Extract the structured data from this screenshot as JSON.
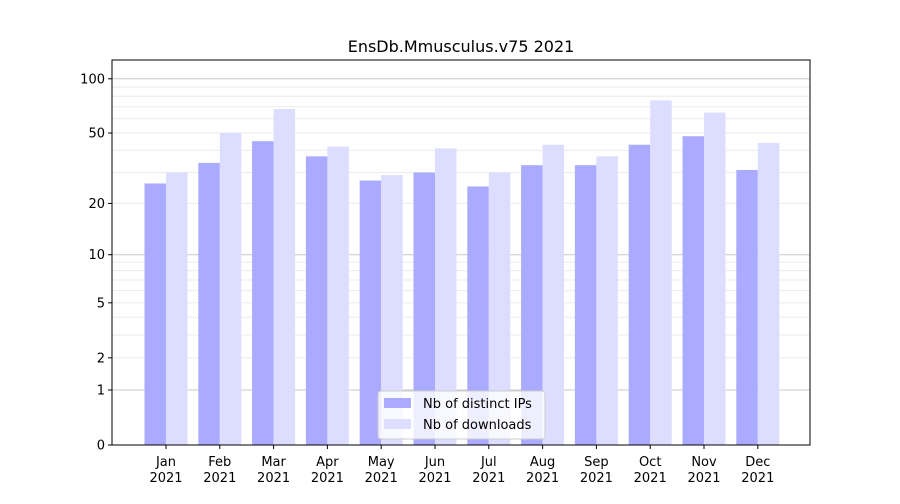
{
  "chart_data": {
    "type": "bar",
    "title": "EnsDb.Mmusculus.v75 2021",
    "xlabel": "",
    "ylabel": "",
    "y_scale": "log10(1+y)",
    "ylim": [
      0,
      127
    ],
    "yticks": [
      0,
      1,
      2,
      5,
      10,
      20,
      50,
      100
    ],
    "grid": true,
    "legend_position": "bottom-center",
    "categories": [
      "Jan\n2021",
      "Feb\n2021",
      "Mar\n2021",
      "Apr\n2021",
      "May\n2021",
      "Jun\n2021",
      "Jul\n2021",
      "Aug\n2021",
      "Sep\n2021",
      "Oct\n2021",
      "Nov\n2021",
      "Dec\n2021"
    ],
    "series": [
      {
        "name": "Nb of distinct IPs",
        "color": "#aaaaff",
        "values": [
          26,
          34,
          45,
          37,
          27,
          30,
          25,
          33,
          33,
          43,
          48,
          31
        ]
      },
      {
        "name": "Nb of downloads",
        "color": "#ddddff",
        "values": [
          30,
          50,
          68,
          42,
          29,
          41,
          30,
          43,
          37,
          76,
          65,
          44
        ]
      }
    ]
  }
}
